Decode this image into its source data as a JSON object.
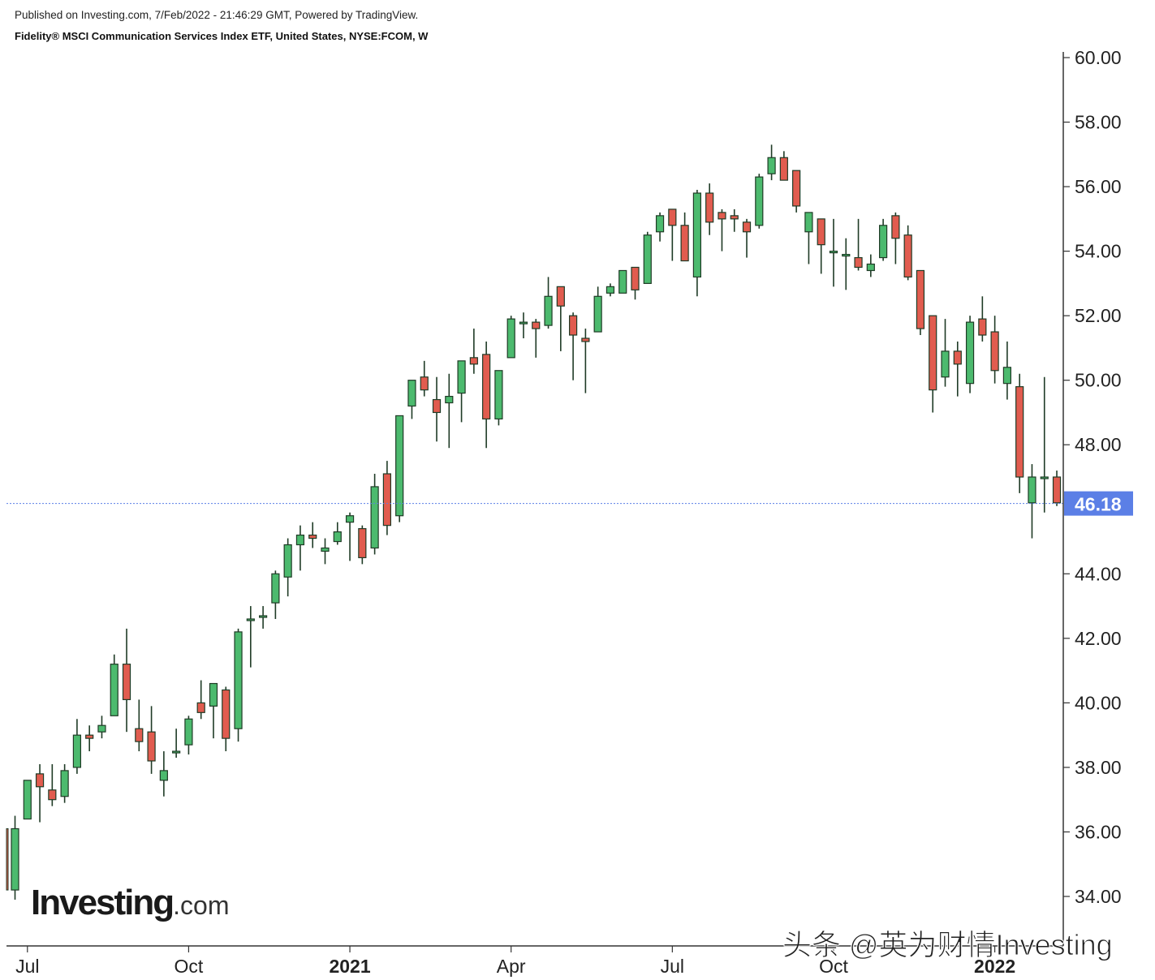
{
  "header": {
    "published": "Published on Investing.com, 7/Feb/2022 - 21:46:29 GMT, Powered by TradingView.",
    "title": "Fidelity® MSCI Communication Services Index ETF, United States, NYSE:FCOM, W"
  },
  "logo": {
    "main": "Investing",
    "suffix": ".com"
  },
  "watermark": "头条 @英为财情Investing",
  "colors": {
    "up": "#4cba6e",
    "down": "#e15c4f",
    "wick": "#1f3b26",
    "last_price_bg": "#5b7fe6",
    "axis": "#333333"
  },
  "chart_data": {
    "type": "candlestick",
    "symbol": "NYSE:FCOM",
    "interval": "W",
    "y_ticks": [
      "34.00",
      "36.00",
      "38.00",
      "40.00",
      "42.00",
      "44.00",
      "46.18",
      "48.00",
      "50.00",
      "52.00",
      "54.00",
      "56.00",
      "58.00",
      "60.00"
    ],
    "y_tick_values": [
      34,
      36,
      38,
      40,
      42,
      44,
      48,
      50,
      52,
      54,
      56,
      58,
      60
    ],
    "ylim": [
      33,
      60
    ],
    "last_price": 46.18,
    "last_price_label": "46.18",
    "x_ticks": [
      {
        "label": "Jul",
        "bold": false,
        "index": 1
      },
      {
        "label": "Oct",
        "bold": false,
        "index": 14
      },
      {
        "label": "2021",
        "bold": true,
        "index": 27
      },
      {
        "label": "Apr",
        "bold": false,
        "index": 40
      },
      {
        "label": "Jul",
        "bold": false,
        "index": 53
      },
      {
        "label": "Oct",
        "bold": false,
        "index": 66
      },
      {
        "label": "2022",
        "bold": true,
        "index": 79
      }
    ],
    "candles": [
      {
        "o": 34.2,
        "h": 36.5,
        "l": 33.9,
        "c": 36.1
      },
      {
        "o": 36.4,
        "h": 37.6,
        "l": 36.4,
        "c": 37.6
      },
      {
        "o": 37.8,
        "h": 38.1,
        "l": 36.3,
        "c": 37.4
      },
      {
        "o": 37.3,
        "h": 38.1,
        "l": 36.8,
        "c": 37.0
      },
      {
        "o": 37.1,
        "h": 38.1,
        "l": 36.9,
        "c": 37.9
      },
      {
        "o": 38.0,
        "h": 39.5,
        "l": 37.8,
        "c": 39.0
      },
      {
        "o": 39.0,
        "h": 39.3,
        "l": 38.5,
        "c": 38.9
      },
      {
        "o": 39.1,
        "h": 39.6,
        "l": 38.9,
        "c": 39.3
      },
      {
        "o": 39.6,
        "h": 41.5,
        "l": 39.6,
        "c": 41.2
      },
      {
        "o": 41.2,
        "h": 42.3,
        "l": 39.1,
        "c": 40.1
      },
      {
        "o": 39.2,
        "h": 40.1,
        "l": 38.5,
        "c": 38.8
      },
      {
        "o": 39.1,
        "h": 39.9,
        "l": 37.8,
        "c": 38.2
      },
      {
        "o": 37.6,
        "h": 38.5,
        "l": 37.1,
        "c": 37.9
      },
      {
        "o": 38.5,
        "h": 39.2,
        "l": 38.3,
        "c": 38.5
      },
      {
        "o": 38.7,
        "h": 39.6,
        "l": 38.4,
        "c": 39.5
      },
      {
        "o": 40.0,
        "h": 40.7,
        "l": 39.5,
        "c": 39.7
      },
      {
        "o": 39.9,
        "h": 40.6,
        "l": 38.9,
        "c": 40.6
      },
      {
        "o": 40.4,
        "h": 40.5,
        "l": 38.5,
        "c": 38.9
      },
      {
        "o": 39.2,
        "h": 42.3,
        "l": 38.8,
        "c": 42.2
      },
      {
        "o": 42.6,
        "h": 43.0,
        "l": 41.1,
        "c": 42.6
      },
      {
        "o": 42.7,
        "h": 43.0,
        "l": 42.3,
        "c": 42.7
      },
      {
        "o": 43.1,
        "h": 44.1,
        "l": 42.6,
        "c": 44.0
      },
      {
        "o": 43.9,
        "h": 45.1,
        "l": 43.3,
        "c": 44.9
      },
      {
        "o": 44.9,
        "h": 45.5,
        "l": 44.1,
        "c": 45.2
      },
      {
        "o": 45.2,
        "h": 45.6,
        "l": 44.8,
        "c": 45.1
      },
      {
        "o": 44.7,
        "h": 45.1,
        "l": 44.3,
        "c": 44.8
      },
      {
        "o": 45.0,
        "h": 45.6,
        "l": 44.9,
        "c": 45.3
      },
      {
        "o": 45.6,
        "h": 45.9,
        "l": 44.4,
        "c": 45.8
      },
      {
        "o": 45.4,
        "h": 45.5,
        "l": 44.3,
        "c": 44.5
      },
      {
        "o": 44.8,
        "h": 47.1,
        "l": 44.6,
        "c": 46.7
      },
      {
        "o": 47.1,
        "h": 47.5,
        "l": 45.2,
        "c": 45.5
      },
      {
        "o": 45.8,
        "h": 48.9,
        "l": 45.6,
        "c": 48.9
      },
      {
        "o": 49.2,
        "h": 50.0,
        "l": 48.8,
        "c": 50.0
      },
      {
        "o": 50.1,
        "h": 50.6,
        "l": 49.5,
        "c": 49.7
      },
      {
        "o": 49.4,
        "h": 50.1,
        "l": 48.1,
        "c": 49.0
      },
      {
        "o": 49.3,
        "h": 50.2,
        "l": 47.9,
        "c": 49.5
      },
      {
        "o": 49.6,
        "h": 50.6,
        "l": 48.7,
        "c": 50.6
      },
      {
        "o": 50.7,
        "h": 51.6,
        "l": 50.2,
        "c": 50.5
      },
      {
        "o": 50.8,
        "h": 51.2,
        "l": 47.9,
        "c": 48.8
      },
      {
        "o": 48.8,
        "h": 50.3,
        "l": 48.6,
        "c": 50.3
      },
      {
        "o": 50.7,
        "h": 52.0,
        "l": 50.7,
        "c": 51.9
      },
      {
        "o": 51.8,
        "h": 52.1,
        "l": 51.3,
        "c": 51.8
      },
      {
        "o": 51.8,
        "h": 51.9,
        "l": 50.7,
        "c": 51.6
      },
      {
        "o": 51.7,
        "h": 53.2,
        "l": 51.6,
        "c": 52.6
      },
      {
        "o": 52.9,
        "h": 52.9,
        "l": 50.9,
        "c": 52.3
      },
      {
        "o": 52.0,
        "h": 52.1,
        "l": 50.0,
        "c": 51.4
      },
      {
        "o": 51.3,
        "h": 51.6,
        "l": 49.6,
        "c": 51.2
      },
      {
        "o": 51.5,
        "h": 52.9,
        "l": 51.5,
        "c": 52.6
      },
      {
        "o": 52.7,
        "h": 53.0,
        "l": 52.6,
        "c": 52.9
      },
      {
        "o": 52.7,
        "h": 53.4,
        "l": 52.7,
        "c": 53.4
      },
      {
        "o": 53.5,
        "h": 53.5,
        "l": 52.5,
        "c": 52.8
      },
      {
        "o": 53.0,
        "h": 54.6,
        "l": 53.0,
        "c": 54.5
      },
      {
        "o": 54.6,
        "h": 55.2,
        "l": 54.3,
        "c": 55.1
      },
      {
        "o": 55.3,
        "h": 55.3,
        "l": 53.7,
        "c": 54.8
      },
      {
        "o": 54.8,
        "h": 55.2,
        "l": 53.7,
        "c": 53.7
      },
      {
        "o": 53.2,
        "h": 55.9,
        "l": 52.6,
        "c": 55.8
      },
      {
        "o": 55.8,
        "h": 56.1,
        "l": 54.5,
        "c": 54.9
      },
      {
        "o": 55.2,
        "h": 55.3,
        "l": 54.0,
        "c": 55.0
      },
      {
        "o": 55.1,
        "h": 55.3,
        "l": 54.6,
        "c": 55.0
      },
      {
        "o": 54.9,
        "h": 55.0,
        "l": 53.8,
        "c": 54.6
      },
      {
        "o": 54.8,
        "h": 56.4,
        "l": 54.7,
        "c": 56.3
      },
      {
        "o": 56.4,
        "h": 57.3,
        "l": 56.2,
        "c": 56.9
      },
      {
        "o": 56.9,
        "h": 57.1,
        "l": 56.2,
        "c": 56.2
      },
      {
        "o": 56.5,
        "h": 56.5,
        "l": 55.2,
        "c": 55.4
      },
      {
        "o": 54.6,
        "h": 55.2,
        "l": 53.6,
        "c": 55.2
      },
      {
        "o": 55.0,
        "h": 55.0,
        "l": 53.3,
        "c": 54.2
      },
      {
        "o": 54.0,
        "h": 55.0,
        "l": 52.9,
        "c": 54.0
      },
      {
        "o": 53.9,
        "h": 54.4,
        "l": 52.8,
        "c": 53.9
      },
      {
        "o": 53.8,
        "h": 55.0,
        "l": 53.4,
        "c": 53.5
      },
      {
        "o": 53.4,
        "h": 53.9,
        "l": 53.2,
        "c": 53.6
      },
      {
        "o": 53.8,
        "h": 55.0,
        "l": 53.7,
        "c": 54.8
      },
      {
        "o": 55.1,
        "h": 55.2,
        "l": 53.6,
        "c": 54.4
      },
      {
        "o": 54.5,
        "h": 54.8,
        "l": 53.1,
        "c": 53.2
      },
      {
        "o": 53.4,
        "h": 53.4,
        "l": 51.4,
        "c": 51.6
      },
      {
        "o": 52.0,
        "h": 52.0,
        "l": 49.0,
        "c": 49.7
      },
      {
        "o": 50.1,
        "h": 51.9,
        "l": 49.8,
        "c": 50.9
      },
      {
        "o": 50.9,
        "h": 51.2,
        "l": 49.5,
        "c": 50.5
      },
      {
        "o": 49.9,
        "h": 52.0,
        "l": 49.6,
        "c": 51.8
      },
      {
        "o": 51.9,
        "h": 52.6,
        "l": 51.2,
        "c": 51.4
      },
      {
        "o": 51.5,
        "h": 52.0,
        "l": 49.9,
        "c": 50.3
      },
      {
        "o": 49.9,
        "h": 51.2,
        "l": 49.4,
        "c": 50.4
      },
      {
        "o": 49.8,
        "h": 50.2,
        "l": 46.5,
        "c": 47.0
      },
      {
        "o": 46.2,
        "h": 47.4,
        "l": 45.1,
        "c": 47.0
      },
      {
        "o": 47.0,
        "h": 50.1,
        "l": 45.9,
        "c": 47.0
      },
      {
        "o": 47.0,
        "h": 47.2,
        "l": 46.1,
        "c": 46.2
      }
    ]
  }
}
